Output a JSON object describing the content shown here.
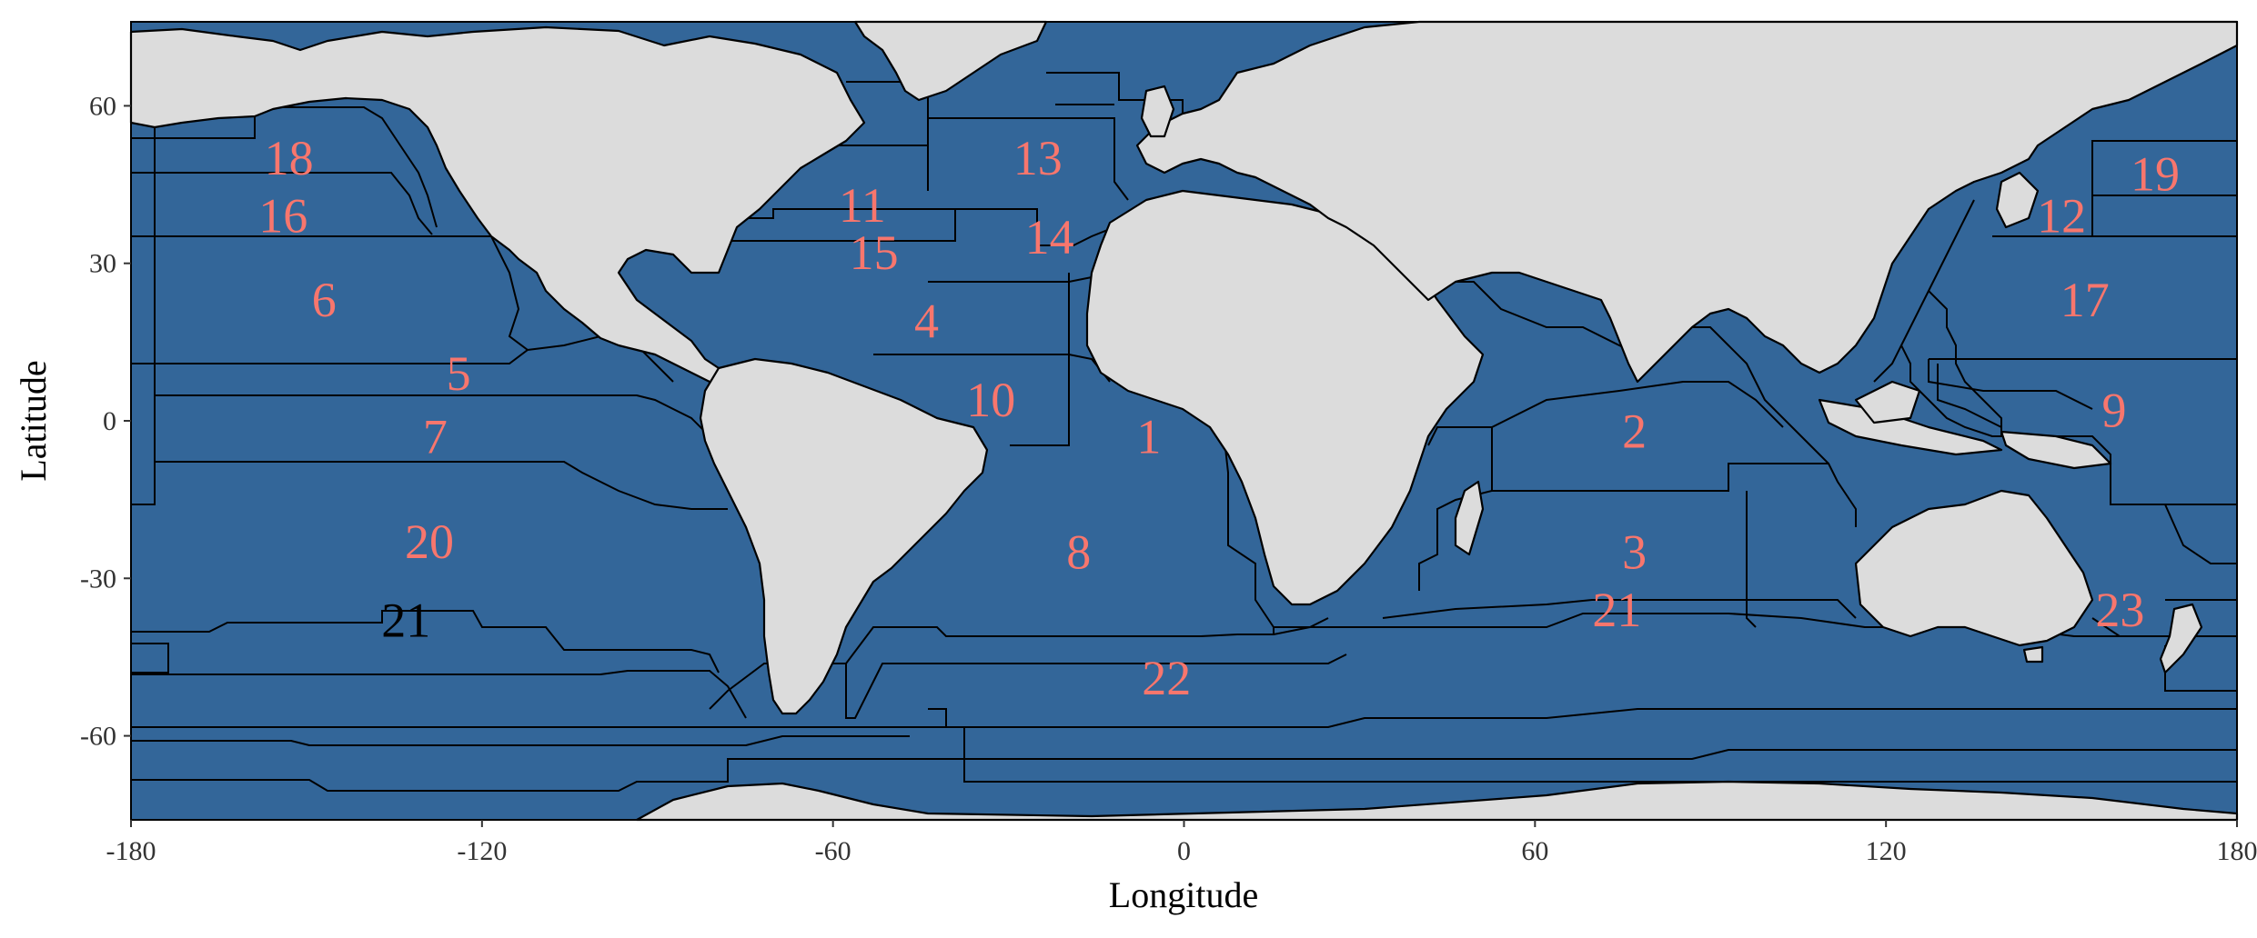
{
  "axes": {
    "xlabel": "Longitude",
    "ylabel": "Latitude",
    "xlim": [
      -180,
      180
    ],
    "ylim": [
      -76,
      76
    ],
    "xticks": [
      -180,
      -120,
      -60,
      0,
      60,
      120,
      180
    ],
    "yticks": [
      -60,
      -30,
      0,
      30,
      60
    ]
  },
  "colors": {
    "ocean": "#336699",
    "land": "#dcdcdc",
    "border": "#000000",
    "label_default": "#f8766d",
    "label_alt": "#000000"
  },
  "regions": [
    {
      "id": "1",
      "lon": -6,
      "lat": -3
    },
    {
      "id": "2",
      "lon": 77,
      "lat": -2
    },
    {
      "id": "3",
      "lon": 77,
      "lat": -25
    },
    {
      "id": "4",
      "lon": -44,
      "lat": 19
    },
    {
      "id": "5",
      "lon": -124,
      "lat": 9
    },
    {
      "id": "6",
      "lon": -147,
      "lat": 23
    },
    {
      "id": "7",
      "lon": -128,
      "lat": -3
    },
    {
      "id": "8",
      "lon": -18,
      "lat": -25
    },
    {
      "id": "9",
      "lon": 159,
      "lat": 2
    },
    {
      "id": "10",
      "lon": -33,
      "lat": 4
    },
    {
      "id": "11",
      "lon": -55,
      "lat": 41
    },
    {
      "id": "12",
      "lon": 150,
      "lat": 39
    },
    {
      "id": "13",
      "lon": -25,
      "lat": 50
    },
    {
      "id": "14",
      "lon": -23,
      "lat": 35
    },
    {
      "id": "15",
      "lon": -53,
      "lat": 32
    },
    {
      "id": "16",
      "lon": -154,
      "lat": 39
    },
    {
      "id": "17",
      "lon": 154,
      "lat": 23
    },
    {
      "id": "18",
      "lon": -153,
      "lat": 50
    },
    {
      "id": "19",
      "lon": 166,
      "lat": 47
    },
    {
      "id": "20",
      "lon": -129,
      "lat": -23
    },
    {
      "id": "21",
      "lon": 74,
      "lat": -36
    },
    {
      "id": "21",
      "lon": -133,
      "lat": -38,
      "color": "#000000"
    },
    {
      "id": "22",
      "lon": -3,
      "lat": -49
    },
    {
      "id": "23",
      "lon": 160,
      "lat": -36
    }
  ]
}
